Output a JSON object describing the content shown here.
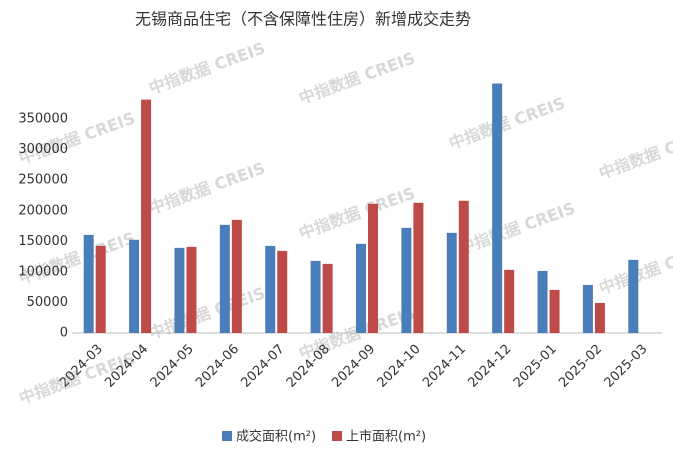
{
  "chart_data": {
    "type": "bar",
    "title": "无锡商品住宅（不含保障性住房）新增成交走势",
    "watermark": "中指数据 CREIS",
    "categories": [
      "2024-03",
      "2024-04",
      "2024-05",
      "2024-06",
      "2024-07",
      "2024-08",
      "2024-09",
      "2024-10",
      "2024-11",
      "2024-12",
      "2025-01",
      "2025-02",
      "2025-03"
    ],
    "series": [
      {
        "name": "成交面积(m²)",
        "color": "#4a7ebb",
        "values": [
          160600,
          152500,
          139300,
          177000,
          142600,
          118000,
          145900,
          172100,
          163900,
          408200,
          101600,
          78700,
          119700
        ]
      },
      {
        "name": "上市面积(m²)",
        "color": "#be4b48",
        "values": [
          142600,
          382000,
          141000,
          185200,
          134400,
          113100,
          211500,
          213100,
          216400,
          103300,
          70500,
          49200,
          null
        ]
      }
    ],
    "ylim": [
      0,
      450000
    ],
    "yticks": [
      0,
      50000,
      100000,
      150000,
      200000,
      250000,
      300000,
      350000
    ],
    "grid": false
  }
}
